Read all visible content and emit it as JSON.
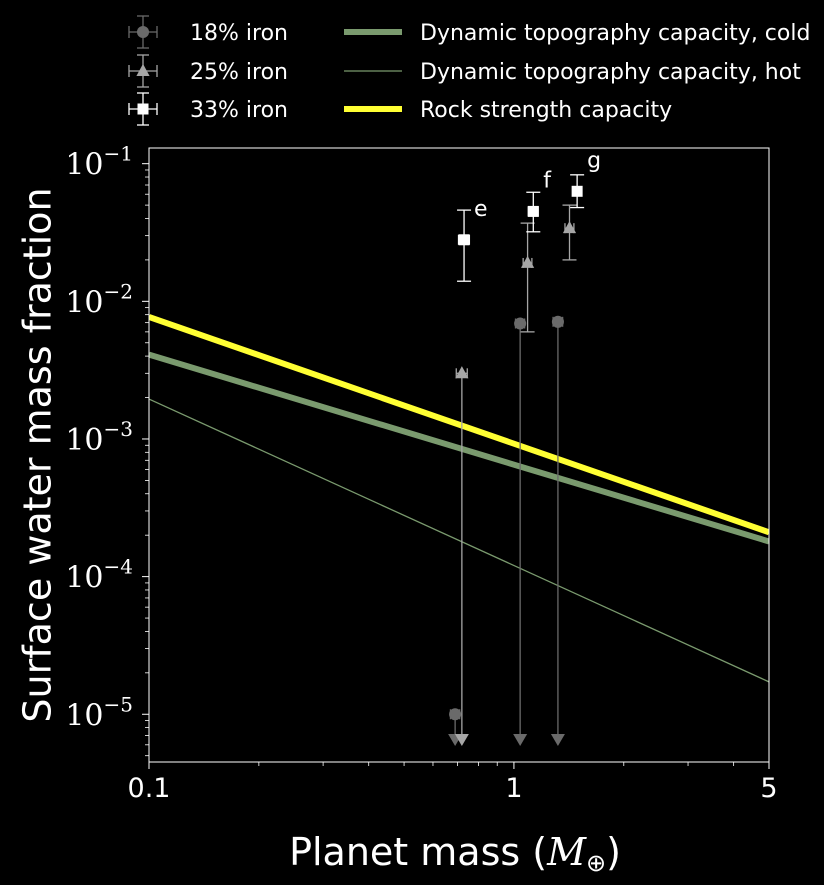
{
  "chart_data": {
    "type": "scatter",
    "xlabel": "Planet mass (",
    "xlabel_symbol": "M",
    "xlabel_sub": "⊕",
    "xlabel_close": ")",
    "ylabel": "Surface water mass fraction",
    "xscale": "log",
    "yscale": "log",
    "xlim": [
      0.1,
      5
    ],
    "ylim": [
      4.5e-06,
      0.13
    ],
    "x_ticks": [
      {
        "value": 0.1,
        "label": "0.1"
      },
      {
        "value": 1,
        "label": "1"
      },
      {
        "value": 5,
        "label": "5"
      }
    ],
    "y_ticks": [
      {
        "value": 0.1,
        "base": "10",
        "exp": "−1"
      },
      {
        "value": 0.01,
        "base": "10",
        "exp": "−2"
      },
      {
        "value": 0.001,
        "base": "10",
        "exp": "−3"
      },
      {
        "value": 0.0001,
        "base": "10",
        "exp": "−4"
      },
      {
        "value": 1e-05,
        "base": "10",
        "exp": "−5"
      }
    ],
    "legend_placement": "top, outside plot",
    "lines": [
      {
        "name": "Dynamic topography capacity, cold",
        "color": "#7a9a6e",
        "width": 6,
        "x": [
          0.1,
          5
        ],
        "y": [
          0.0041,
          0.00018
        ]
      },
      {
        "name": "Dynamic topography capacity, hot",
        "color": "#7a9a6e",
        "width": 1.3,
        "x": [
          0.1,
          5
        ],
        "y": [
          0.00195,
          1.72e-05
        ]
      },
      {
        "name": "Rock strength capacity",
        "color": "#ffff33",
        "width": 6,
        "x": [
          0.1,
          5
        ],
        "y": [
          0.0077,
          0.00021
        ]
      }
    ],
    "series": [
      {
        "name": "18% iron",
        "marker": "circle",
        "color": "#6a6a6a",
        "points": [
          {
            "x": 0.69,
            "y": 1e-05,
            "upper_limit": true,
            "xerr": 0.02
          },
          {
            "x": 1.04,
            "y": 0.0069,
            "upper_limit": true,
            "xerr": 0.03
          },
          {
            "x": 1.32,
            "y": 0.0071,
            "upper_limit": true,
            "xerr": 0.04
          }
        ]
      },
      {
        "name": "25% iron",
        "marker": "triangle",
        "color": "#a6a6a6",
        "points": [
          {
            "x": 0.72,
            "y": 0.003,
            "upper_limit": true,
            "xerr": 0.025
          },
          {
            "x": 1.09,
            "y": 0.019,
            "ylow": 0.006,
            "yhigh": 0.037,
            "xerr": 0.03
          },
          {
            "x": 1.42,
            "y": 0.034,
            "ylow": 0.02,
            "yhigh": 0.05,
            "xerr": 0.04
          }
        ]
      },
      {
        "name": "33% iron",
        "marker": "square",
        "color": "#ffffff",
        "points": [
          {
            "x": 0.73,
            "y": 0.028,
            "ylow": 0.014,
            "yhigh": 0.046,
            "xerr": 0.025,
            "label": "e"
          },
          {
            "x": 1.13,
            "y": 0.045,
            "ylow": 0.032,
            "yhigh": 0.062,
            "xerr": 0.035,
            "label": "f"
          },
          {
            "x": 1.49,
            "y": 0.063,
            "ylow": 0.048,
            "yhigh": 0.083,
            "xerr": 0.04,
            "label": "g"
          }
        ]
      }
    ]
  }
}
